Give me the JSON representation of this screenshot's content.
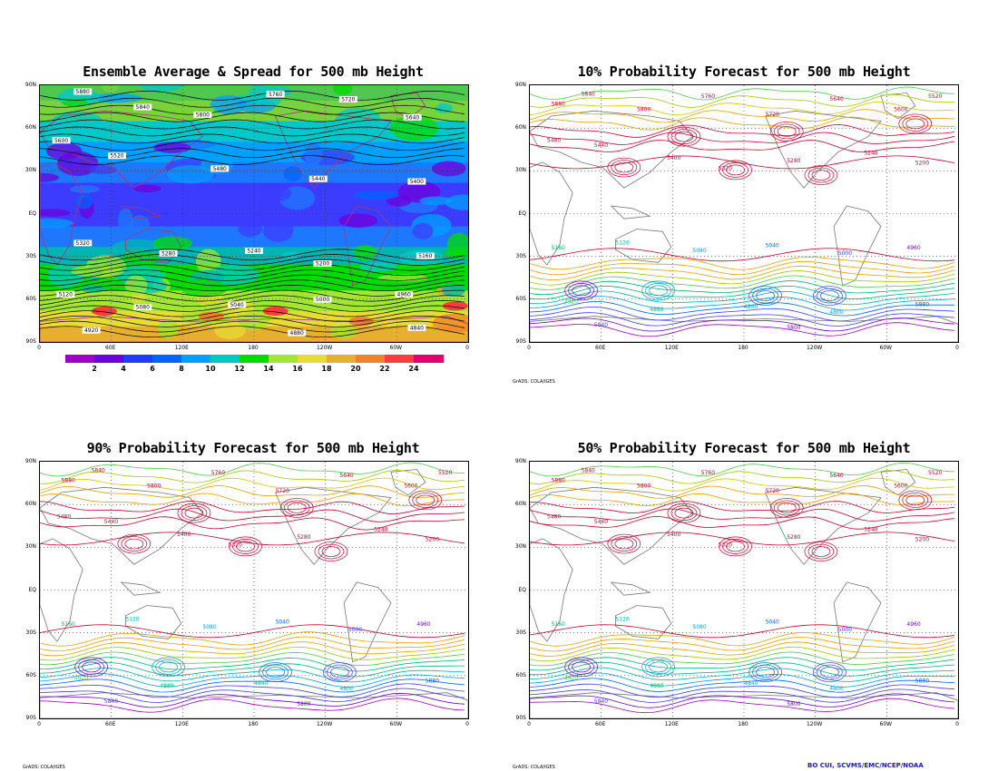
{
  "panels": [
    {
      "id": "p1",
      "title": "Ensemble Average & Spread for 500 mb Height"
    },
    {
      "id": "p2",
      "title": "10% Probability Forecast for 500 mb Height"
    },
    {
      "id": "p3",
      "title": "90% Probability Forecast for 500 mb Height"
    },
    {
      "id": "p4",
      "title": "50% Probability Forecast for 500 mb Height"
    }
  ],
  "lat_labels": [
    "90N",
    "60N",
    "30N",
    "EQ",
    "30S",
    "60S",
    "90S"
  ],
  "lon_labels": [
    "0",
    "60E",
    "120E",
    "180",
    "120W",
    "60W",
    "0"
  ],
  "colorbar": {
    "labels": [
      "2",
      "4",
      "6",
      "8",
      "10",
      "12",
      "14",
      "16",
      "18",
      "20",
      "22",
      "24"
    ],
    "colors": [
      "#a000c8",
      "#6e00dc",
      "#1e3cff",
      "#0064ff",
      "#00a0ff",
      "#00c8c8",
      "#00dc00",
      "#a0e632",
      "#e6dc32",
      "#e6af2d",
      "#f08228",
      "#fa3c3c",
      "#e6006e"
    ]
  },
  "grads_stamp": "GrADS: COLA/IGES",
  "credit": "BO CUI, SCVMS/EMC/NCEP/NOAA",
  "contour_labels": [
    "5880",
    "5840",
    "5800",
    "5760",
    "5720",
    "5640",
    "5600",
    "5520",
    "5480",
    "5440",
    "5400",
    "5320",
    "5280",
    "5240",
    "5200",
    "5160",
    "5120",
    "5080",
    "5040",
    "5000",
    "4960",
    "4920",
    "4880",
    "4840",
    "4800"
  ]
}
